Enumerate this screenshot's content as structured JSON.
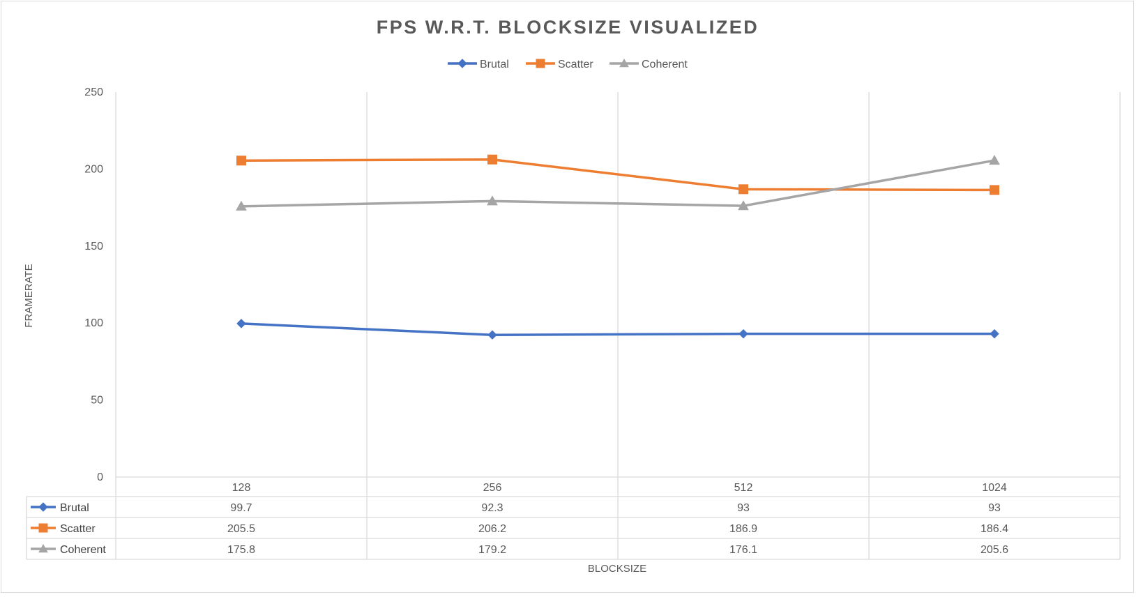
{
  "chart_data": {
    "type": "line",
    "title": "FPS W.R.T. BLOCKSIZE VISUALIZED",
    "xlabel": "BLOCKSIZE",
    "ylabel": "FRAMERATE",
    "categories": [
      "128",
      "256",
      "512",
      "1024"
    ],
    "ylim": [
      0,
      250
    ],
    "yticks": [
      0,
      50,
      100,
      150,
      200,
      250
    ],
    "grid": {
      "vertical": true,
      "horizontal": false
    },
    "legend_position": "top",
    "data_table": true,
    "series": [
      {
        "name": "Brutal",
        "values": [
          99.7,
          92.3,
          93,
          93
        ],
        "labels": [
          "99.7",
          "92.3",
          "93",
          "93"
        ],
        "color": "#4472c4",
        "marker": "diamond"
      },
      {
        "name": "Scatter",
        "values": [
          205.5,
          206.2,
          186.9,
          186.4
        ],
        "labels": [
          "205.5",
          "206.2",
          "186.9",
          "186.4"
        ],
        "color": "#ed7d31",
        "marker": "square"
      },
      {
        "name": "Coherent",
        "values": [
          175.8,
          179.2,
          176.1,
          205.6
        ],
        "labels": [
          "175.8",
          "179.2",
          "176.1",
          "205.6"
        ],
        "color": "#a5a5a5",
        "marker": "triangle"
      }
    ]
  }
}
